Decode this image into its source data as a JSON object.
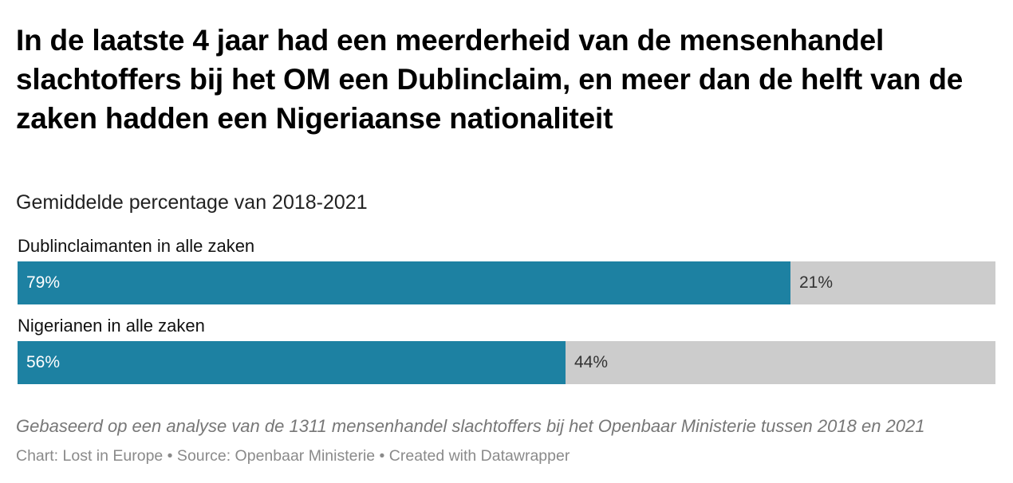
{
  "title": "In de laatste 4 jaar had een meerderheid van de mensenhandel slachtoffers bij het OM een Dublinclaim, en meer dan de helft van de zaken hadden een Nigeriaanse nationaliteit",
  "subtitle": "Gemiddelde percentage van 2018-2021",
  "colors": {
    "primary": "#1d81a2",
    "remainder": "#cccccc"
  },
  "chart_data": {
    "type": "bar",
    "orientation": "horizontal",
    "stacked": true,
    "categories": [
      "Dublinclaimanten in alle zaken",
      "Nigerianen in alle zaken"
    ],
    "series": [
      {
        "name": "share",
        "values": [
          79,
          56
        ],
        "labels": [
          "79%",
          "56%"
        ]
      },
      {
        "name": "rest",
        "values": [
          21,
          44
        ],
        "labels": [
          "21%",
          "44%"
        ]
      }
    ],
    "xlim": [
      0,
      100
    ],
    "grid": false
  },
  "note": "Gebaseerd op een analyse van de 1311 mensenhandel slachtoffers bij het Openbaar Ministerie tussen 2018 en 2021",
  "credits": "Chart: Lost in Europe • Source: Openbaar Ministerie • Created with Datawrapper"
}
